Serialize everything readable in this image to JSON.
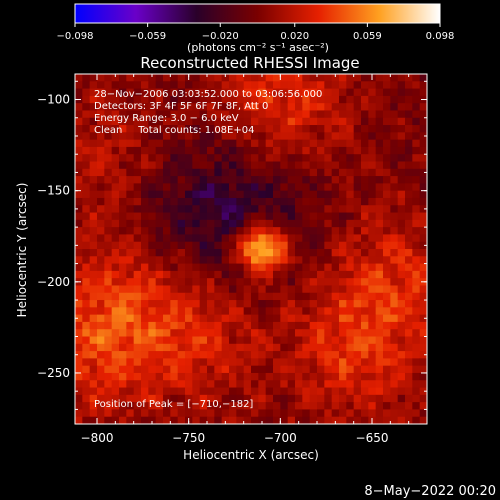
{
  "chart_data": {
    "type": "heatmap",
    "title": "Reconstructed RHESSI Image",
    "xlabel": "Heliocentric X (arcsec)",
    "ylabel": "Heliocentric Y (arcsec)",
    "xlim": [
      -812,
      -620
    ],
    "ylim": [
      -278,
      -86
    ],
    "x_ticks": [
      -800,
      -750,
      -700,
      -650
    ],
    "y_ticks": [
      -100,
      -150,
      -200,
      -250
    ],
    "x_tick_labels": [
      "−800",
      "−750",
      "−700",
      "−650"
    ],
    "y_tick_labels": [
      "−100",
      "−150",
      "−200",
      "−250"
    ],
    "colorbar": {
      "ticks": [
        -0.098,
        -0.059,
        -0.02,
        0.02,
        0.059,
        0.098
      ],
      "tick_labels": [
        "−0.098",
        "−0.059",
        "−0.020",
        "0.020",
        "0.059",
        "0.098"
      ],
      "unit_label": "(photons cm⁻² s⁻¹ asec⁻²)",
      "min": -0.098,
      "max": 0.098,
      "colors": [
        "#0000ff",
        "#6a00c8",
        "#2a002a",
        "#7a0000",
        "#e62000",
        "#ffa020",
        "#ffffff"
      ]
    },
    "annotations": [
      "28−Nov−2006 03:03:52.000 to 03:06:56.000",
      "Detectors: 3F 4F 5F 6F 7F 8F, Att 0",
      "Energy Range: 3.0 − 6.0 keV",
      "Clean     Total counts: 1.08E+04"
    ],
    "peak_label": "Position of Peak = [−710,−182]",
    "peak": {
      "x": -710,
      "y": -182,
      "value": 0.098
    },
    "secondary_sources": [
      {
        "x": -702,
        "y": -103,
        "value": 0.035
      },
      {
        "x": -800,
        "y": -238,
        "value": 0.03
      },
      {
        "x": -745,
        "y": -228,
        "value": 0.028
      },
      {
        "x": -660,
        "y": -238,
        "value": 0.03
      },
      {
        "x": -638,
        "y": -198,
        "value": 0.028
      },
      {
        "x": -795,
        "y": -130,
        "value": 0.018
      },
      {
        "x": -790,
        "y": -205,
        "value": 0.022
      }
    ],
    "negative_region": {
      "x": -730,
      "y": -160,
      "value": -0.035
    }
  },
  "footer_date": "8−May−2022 00:20"
}
